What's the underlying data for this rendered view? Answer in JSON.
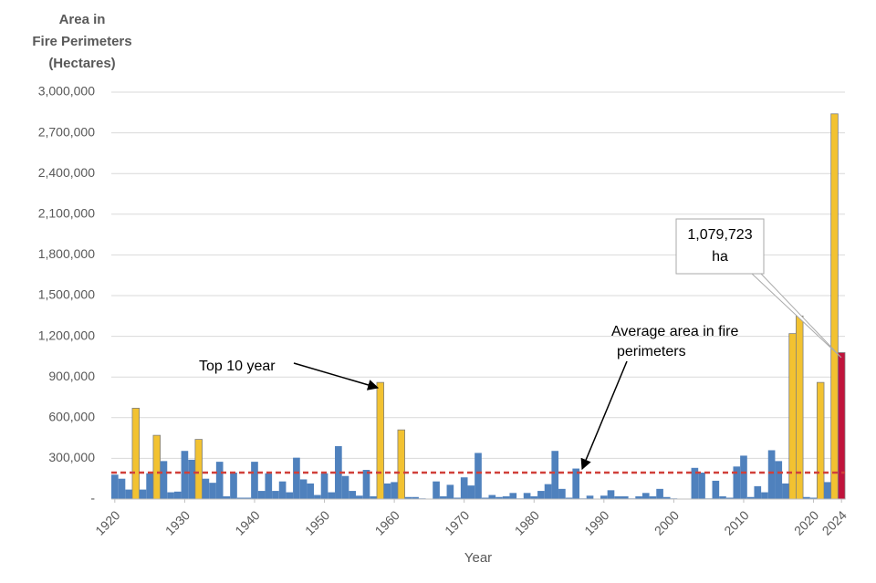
{
  "chart_data": {
    "type": "bar",
    "y_label": [
      "Area in",
      "Fire Perimeters",
      "(Hectares)"
    ],
    "x_label": "Year",
    "x": [
      1920,
      1921,
      1922,
      1923,
      1924,
      1925,
      1926,
      1927,
      1928,
      1929,
      1930,
      1931,
      1932,
      1933,
      1934,
      1935,
      1936,
      1937,
      1938,
      1939,
      1940,
      1941,
      1942,
      1943,
      1944,
      1945,
      1946,
      1947,
      1948,
      1949,
      1950,
      1951,
      1952,
      1953,
      1954,
      1955,
      1956,
      1957,
      1958,
      1959,
      1960,
      1961,
      1962,
      1963,
      1964,
      1965,
      1966,
      1967,
      1968,
      1969,
      1970,
      1971,
      1972,
      1973,
      1974,
      1975,
      1976,
      1977,
      1978,
      1979,
      1980,
      1981,
      1982,
      1983,
      1984,
      1985,
      1986,
      1987,
      1988,
      1989,
      1990,
      1991,
      1992,
      1993,
      1994,
      1995,
      1996,
      1997,
      1998,
      1999,
      2000,
      2001,
      2002,
      2003,
      2004,
      2005,
      2006,
      2007,
      2008,
      2009,
      2010,
      2011,
      2012,
      2013,
      2014,
      2015,
      2016,
      2017,
      2018,
      2019,
      2020,
      2021,
      2022,
      2023,
      2024
    ],
    "values": [
      180000,
      150000,
      70000,
      670000,
      70000,
      190000,
      470000,
      280000,
      50000,
      55000,
      355000,
      290000,
      440000,
      150000,
      120000,
      275000,
      20000,
      195000,
      10000,
      10000,
      275000,
      60000,
      190000,
      60000,
      130000,
      50000,
      305000,
      145000,
      115000,
      30000,
      190000,
      50000,
      390000,
      170000,
      60000,
      25000,
      215000,
      20000,
      860000,
      115000,
      125000,
      510000,
      15000,
      15000,
      5000,
      3000,
      130000,
      20000,
      105000,
      10000,
      160000,
      100000,
      340000,
      10000,
      30000,
      15000,
      20000,
      45000,
      5000,
      45000,
      20000,
      60000,
      110000,
      355000,
      75000,
      10000,
      225000,
      5000,
      25000,
      3000,
      25000,
      65000,
      20000,
      20000,
      5000,
      20000,
      45000,
      20000,
      75000,
      15000,
      5000,
      3000,
      3000,
      230000,
      195000,
      5000,
      135000,
      20000,
      10000,
      240000,
      320000,
      15000,
      95000,
      50000,
      360000,
      280000,
      115000,
      1220000,
      1350000,
      15000,
      10000,
      860000,
      125000,
      2840000,
      1079723
    ],
    "colors": [
      "#4f81bd",
      "#4f81bd",
      "#4f81bd",
      "#f2c231",
      "#4f81bd",
      "#4f81bd",
      "#f2c231",
      "#4f81bd",
      "#4f81bd",
      "#4f81bd",
      "#4f81bd",
      "#4f81bd",
      "#f2c231",
      "#4f81bd",
      "#4f81bd",
      "#4f81bd",
      "#4f81bd",
      "#4f81bd",
      "#4f81bd",
      "#4f81bd",
      "#4f81bd",
      "#4f81bd",
      "#4f81bd",
      "#4f81bd",
      "#4f81bd",
      "#4f81bd",
      "#4f81bd",
      "#4f81bd",
      "#4f81bd",
      "#4f81bd",
      "#4f81bd",
      "#4f81bd",
      "#4f81bd",
      "#4f81bd",
      "#4f81bd",
      "#4f81bd",
      "#4f81bd",
      "#4f81bd",
      "#f2c231",
      "#4f81bd",
      "#4f81bd",
      "#f2c231",
      "#4f81bd",
      "#4f81bd",
      "#4f81bd",
      "#4f81bd",
      "#4f81bd",
      "#4f81bd",
      "#4f81bd",
      "#4f81bd",
      "#4f81bd",
      "#4f81bd",
      "#4f81bd",
      "#4f81bd",
      "#4f81bd",
      "#4f81bd",
      "#4f81bd",
      "#4f81bd",
      "#4f81bd",
      "#4f81bd",
      "#4f81bd",
      "#4f81bd",
      "#4f81bd",
      "#4f81bd",
      "#4f81bd",
      "#4f81bd",
      "#4f81bd",
      "#4f81bd",
      "#4f81bd",
      "#4f81bd",
      "#4f81bd",
      "#4f81bd",
      "#4f81bd",
      "#4f81bd",
      "#4f81bd",
      "#4f81bd",
      "#4f81bd",
      "#4f81bd",
      "#4f81bd",
      "#4f81bd",
      "#4f81bd",
      "#4f81bd",
      "#4f81bd",
      "#4f81bd",
      "#4f81bd",
      "#4f81bd",
      "#4f81bd",
      "#4f81bd",
      "#4f81bd",
      "#4f81bd",
      "#4f81bd",
      "#4f81bd",
      "#4f81bd",
      "#4f81bd",
      "#4f81bd",
      "#4f81bd",
      "#4f81bd",
      "#f2c231",
      "#f2c231",
      "#4f81bd",
      "#4f81bd",
      "#f2c231",
      "#4f81bd",
      "#f2c231",
      "#c0143c"
    ],
    "average": 195000,
    "average_color": "#d0403a",
    "xlim": [
      1919.5,
      2024.5
    ],
    "xticks": [
      1920,
      1930,
      1940,
      1950,
      1960,
      1970,
      1980,
      1990,
      2000,
      2010,
      2020,
      2024
    ],
    "ylim": [
      0,
      3000000
    ],
    "yticks": [
      {
        "value": 0,
        "label": "-"
      },
      {
        "value": 300000,
        "label": "300,000"
      },
      {
        "value": 600000,
        "label": "600,000"
      },
      {
        "value": 900000,
        "label": "900,000"
      },
      {
        "value": 1200000,
        "label": "1,200,000"
      },
      {
        "value": 1500000,
        "label": "1,500,000"
      },
      {
        "value": 1800000,
        "label": "1,800,000"
      },
      {
        "value": 2100000,
        "label": "2,100,000"
      },
      {
        "value": 2400000,
        "label": "2,400,000"
      },
      {
        "value": 2700000,
        "label": "2,700,000"
      },
      {
        "value": 3000000,
        "label": "3,000,000"
      }
    ],
    "grid": true,
    "annotations": [
      "Top 10 year",
      [
        "Average area in fire",
        "perimeters"
      ],
      [
        "1,079,723",
        "ha"
      ]
    ]
  }
}
